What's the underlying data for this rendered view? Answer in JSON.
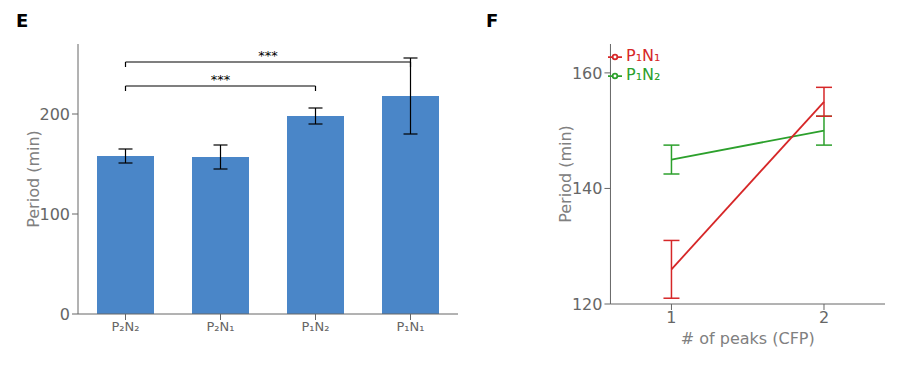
{
  "chart_data": [
    {
      "type": "bar",
      "title": "E",
      "categories": [
        "P₂N₂",
        "P₂N₁",
        "P₁N₂",
        "P₁N₁"
      ],
      "values": [
        158,
        157,
        198,
        218
      ],
      "errors": [
        7,
        12,
        8,
        38
      ],
      "color": "#4a86c8",
      "ylabel": "Period (min)",
      "ylim": [
        0,
        270
      ],
      "yticks": [
        0,
        100,
        200
      ],
      "annotations": [
        {
          "text": "***",
          "from": "P₂N₂",
          "to": "P₁N₂",
          "y": 228
        },
        {
          "text": "***",
          "from": "P₂N₂",
          "to": "P₁N₁",
          "y": 252
        }
      ]
    },
    {
      "type": "line",
      "title": "F",
      "x": [
        1,
        2
      ],
      "series": [
        {
          "name": "P₁N₂",
          "color": "#2ca02c",
          "values": [
            145,
            150
          ],
          "errors": [
            2.5,
            2.5
          ]
        },
        {
          "name": "P₁N₁",
          "color": "#d62728",
          "values": [
            126,
            155
          ],
          "errors": [
            5,
            2.5
          ]
        }
      ],
      "xlabel": "# of peaks (CFP)",
      "ylabel": "Period (min)",
      "xlim": [
        0.6,
        2.4
      ],
      "xticks": [
        1,
        2
      ],
      "ylim": [
        120,
        165
      ],
      "yticks": [
        120,
        140,
        160
      ],
      "legend": "upper left"
    }
  ]
}
